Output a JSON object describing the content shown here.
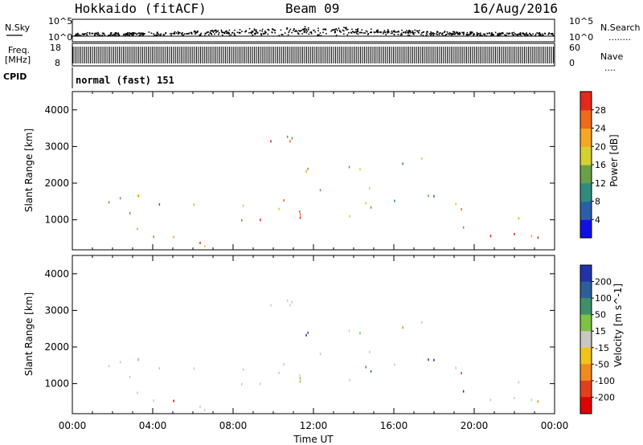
{
  "header": {
    "station": "Hokkaido (fitACF)",
    "beam": "Beam 09",
    "date": "16/Aug/2016"
  },
  "strip_labels": {
    "nsky": "N.Sky",
    "nsearch": "N.Search",
    "nsearch_dots": "........",
    "freq_top": "Freq.",
    "freq_unit": "[MHz]",
    "nave": "Nave",
    "nave_dots": "....",
    "cpid": "CPID",
    "cpid_value": "normal (fast) 151",
    "noise_tick_hi": "10^5",
    "noise_tick_lo": "10^0",
    "freq_tick_hi": "18",
    "freq_tick_lo": "8",
    "nave_tick_hi": "60",
    "nave_tick_lo": "0"
  },
  "chart_data": [
    {
      "type": "heatmap",
      "name": "power-panel",
      "ylabel": "Slant Range [km]",
      "yticks": [
        1000,
        2000,
        3000,
        4000
      ],
      "ylim": [
        180,
        4500
      ],
      "xlim_hours": [
        0,
        24
      ],
      "colorbar_label": "Power [dB]",
      "colorbar_ticks": [
        "4",
        "8",
        "12",
        "16",
        "20",
        "24",
        "28"
      ],
      "colorbar_colors": [
        "#1010e6",
        "#2a5fa8",
        "#2f8c7d",
        "#6aa04a",
        "#d6d12e",
        "#f5a623",
        "#ef6a1a",
        "#e4281c"
      ],
      "echo_regions": [
        {
          "t0": 0.2,
          "t1": 4.2,
          "r0": 350,
          "r1": 1700,
          "level": 0.55
        },
        {
          "t0": 4.0,
          "t1": 8.5,
          "r0": 300,
          "r1": 1500,
          "level": 0.75
        },
        {
          "t0": 8.0,
          "t1": 12.0,
          "r0": 800,
          "r1": 3300,
          "level": 0.7
        },
        {
          "t0": 11.5,
          "t1": 15.0,
          "r0": 600,
          "r1": 3000,
          "level": 0.55
        },
        {
          "t0": 15.0,
          "t1": 18.0,
          "r0": 1500,
          "r1": 3100,
          "level": 0.4
        },
        {
          "t0": 19.0,
          "t1": 24.0,
          "r0": 400,
          "r1": 1900,
          "level": 0.7
        },
        {
          "t0": 5.0,
          "t1": 6.5,
          "r0": 180,
          "r1": 500,
          "level": 0.95
        }
      ]
    },
    {
      "type": "heatmap",
      "name": "velocity-panel",
      "ylabel": "Slant Range [km]",
      "xlabel": "Time UT",
      "yticks": [
        1000,
        2000,
        3000,
        4000
      ],
      "ylim": [
        180,
        4500
      ],
      "xticks": [
        "00:00",
        "04:00",
        "08:00",
        "12:00",
        "16:00",
        "20:00",
        "00:00"
      ],
      "xlim_hours": [
        0,
        24
      ],
      "colorbar_label": "Velocity [m s^-1]",
      "colorbar_ticks": [
        "200",
        "100",
        "50",
        "15",
        "-15",
        "-50",
        "-100",
        "-200"
      ],
      "colorbar_colors": [
        "#2233aa",
        "#2d5f96",
        "#3f8f6a",
        "#7dc243",
        "#c8c8c0",
        "#f0c419",
        "#f08a1e",
        "#e2401c",
        "#e00000"
      ],
      "ground_scatter_color": "#c8c8c0"
    }
  ]
}
